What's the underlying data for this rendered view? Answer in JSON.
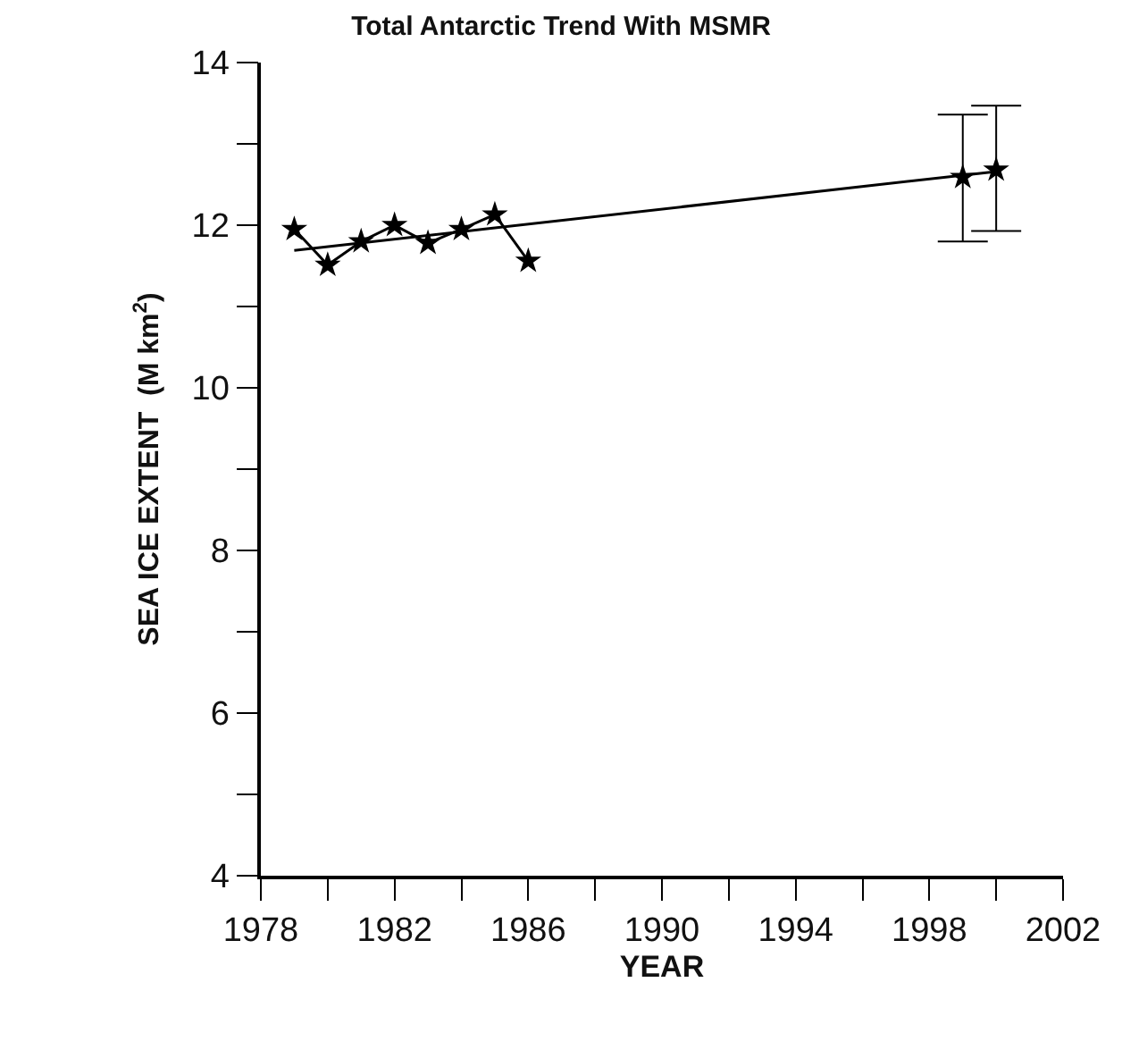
{
  "chart_data": {
    "type": "line",
    "title": "Total Antarctic Trend With MSMR",
    "xlabel": "YEAR",
    "ylabel": "SEA ICE EXTENT  (M km$^{2}$)",
    "xlim": [
      1978,
      2002
    ],
    "xticks": [
      1978,
      {
        "value": 1980,
        "label": null
      },
      1982,
      {
        "value": 1984,
        "label": null
      },
      1986,
      {
        "value": 1988,
        "label": null
      },
      1990,
      {
        "value": 1992,
        "label": null
      },
      1994,
      {
        "value": 1996,
        "label": null
      },
      1998,
      {
        "value": 2000,
        "label": null
      },
      2002
    ],
    "ylim": [
      4,
      14
    ],
    "yticks": [
      4,
      {
        "value": 5,
        "label": null
      },
      6,
      {
        "value": 7,
        "label": null
      },
      8,
      {
        "value": 9,
        "label": null
      },
      10,
      {
        "value": 11,
        "label": null
      },
      12,
      {
        "value": 13,
        "label": null
      },
      14
    ],
    "marker": "star",
    "line_style": "solid",
    "series": [
      {
        "color": "#000000",
        "x": [
          1979,
          1980,
          1981,
          1982,
          1983,
          1984,
          1985,
          1986
        ],
        "values": [
          11.95,
          11.51,
          11.8,
          12.0,
          11.78,
          11.95,
          12.13,
          11.56
        ]
      },
      {
        "type": "scatter",
        "color": "#000000",
        "x": [
          1999,
          2000
        ],
        "values": [
          12.59,
          12.68
        ],
        "errors": [
          [
            11.8,
            13.36
          ],
          [
            11.93,
            13.47
          ]
        ]
      },
      {
        "marker": "none",
        "color": "#000000",
        "x": [
          1979,
          2000
        ],
        "values": [
          11.69,
          12.66
        ]
      }
    ]
  }
}
